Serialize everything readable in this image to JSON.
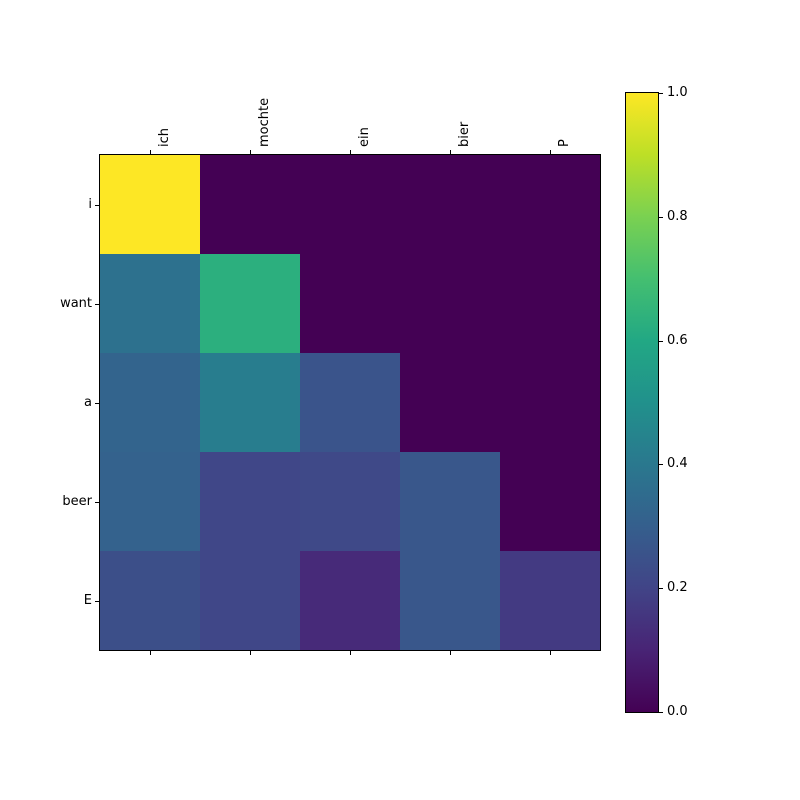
{
  "figure": {
    "background": "#ffffff",
    "axis_color": "#000000",
    "text_color": "#000000"
  },
  "chart_data": {
    "type": "heatmap",
    "title": "",
    "xlabel": "",
    "ylabel": "",
    "x_labels": [
      "ich",
      "mochte",
      "ein",
      "bier",
      "P"
    ],
    "y_labels": [
      "i",
      "want",
      "a",
      "beer",
      "E"
    ],
    "matrix": [
      [
        1.0,
        0.0,
        0.0,
        0.0,
        0.0
      ],
      [
        0.37,
        0.63,
        0.0,
        0.0,
        0.0
      ],
      [
        0.32,
        0.42,
        0.26,
        0.0,
        0.0
      ],
      [
        0.31,
        0.21,
        0.22,
        0.27,
        0.0
      ],
      [
        0.24,
        0.21,
        0.12,
        0.27,
        0.17
      ]
    ],
    "value_range": [
      0.0,
      1.0
    ],
    "colormap": "viridis",
    "colormap_stops": [
      {
        "t": 0.0,
        "color": "#440154"
      },
      {
        "t": 0.1,
        "color": "#482475"
      },
      {
        "t": 0.2,
        "color": "#414487"
      },
      {
        "t": 0.3,
        "color": "#355f8d"
      },
      {
        "t": 0.4,
        "color": "#2a788e"
      },
      {
        "t": 0.5,
        "color": "#21918c"
      },
      {
        "t": 0.6,
        "color": "#22a884"
      },
      {
        "t": 0.7,
        "color": "#44bf70"
      },
      {
        "t": 0.8,
        "color": "#7ad151"
      },
      {
        "t": 0.9,
        "color": "#bddf26"
      },
      {
        "t": 1.0,
        "color": "#fde725"
      }
    ],
    "colorbar": {
      "tick_labels": [
        "1.0",
        "0.8",
        "0.6",
        "0.4",
        "0.2",
        "0.0"
      ],
      "tick_values": [
        1.0,
        0.8,
        0.6,
        0.4,
        0.2,
        0.0
      ]
    },
    "legend": "colorbar-right",
    "grid": false
  }
}
